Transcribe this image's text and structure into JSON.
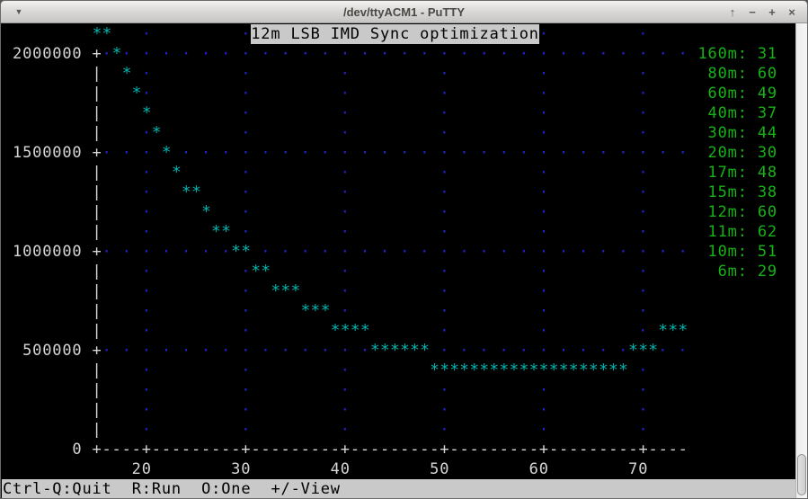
{
  "window": {
    "title": "/dev/ttyACM1 - PuTTY",
    "menu_icon": "▼",
    "buttons": [
      {
        "name": "shade-button",
        "glyph": "↑"
      },
      {
        "name": "minimize-button",
        "glyph": "−"
      },
      {
        "name": "maximize-button",
        "glyph": "+"
      },
      {
        "name": "close-button",
        "glyph": "×"
      }
    ]
  },
  "status_bar": {
    "text": "Ctrl-Q:Quit  R:Run  O:One  +/-View"
  },
  "colors": {
    "star": "#00b4ae",
    "dot": "#2222cc",
    "axis": "#d6d6d6",
    "legend": "#16b216",
    "title_bg": "#c9c9c9"
  },
  "chart_data": {
    "type": "scatter",
    "title": "12m LSB IMD Sync optimization",
    "marker": "*",
    "xlabel": "",
    "ylabel": "",
    "x_ticks": [
      20,
      30,
      40,
      50,
      60,
      70
    ],
    "y_ticks": [
      0,
      500000,
      1000000,
      1500000,
      2000000
    ],
    "x_range": [
      15,
      74
    ],
    "y_range": [
      0,
      2100000
    ],
    "grid": true,
    "legend_position": "right",
    "points": [
      [
        15,
        2100000
      ],
      [
        16,
        2100000
      ],
      [
        17,
        2000000
      ],
      [
        18,
        1900000
      ],
      [
        19,
        1800000
      ],
      [
        20,
        1700000
      ],
      [
        21,
        1600000
      ],
      [
        22,
        1500000
      ],
      [
        23,
        1400000
      ],
      [
        24,
        1300000
      ],
      [
        25,
        1300000
      ],
      [
        26,
        1200000
      ],
      [
        27,
        1100000
      ],
      [
        28,
        1100000
      ],
      [
        29,
        1000000
      ],
      [
        30,
        1000000
      ],
      [
        31,
        900000
      ],
      [
        32,
        900000
      ],
      [
        33,
        800000
      ],
      [
        34,
        800000
      ],
      [
        35,
        800000
      ],
      [
        36,
        700000
      ],
      [
        37,
        700000
      ],
      [
        38,
        700000
      ],
      [
        39,
        600000
      ],
      [
        40,
        600000
      ],
      [
        41,
        600000
      ],
      [
        42,
        600000
      ],
      [
        43,
        500000
      ],
      [
        44,
        500000
      ],
      [
        45,
        500000
      ],
      [
        46,
        500000
      ],
      [
        47,
        500000
      ],
      [
        48,
        500000
      ],
      [
        49,
        400000
      ],
      [
        50,
        400000
      ],
      [
        51,
        400000
      ],
      [
        52,
        400000
      ],
      [
        53,
        400000
      ],
      [
        54,
        400000
      ],
      [
        55,
        400000
      ],
      [
        56,
        400000
      ],
      [
        57,
        400000
      ],
      [
        58,
        400000
      ],
      [
        59,
        400000
      ],
      [
        60,
        400000
      ],
      [
        61,
        400000
      ],
      [
        62,
        400000
      ],
      [
        63,
        400000
      ],
      [
        64,
        400000
      ],
      [
        65,
        400000
      ],
      [
        66,
        400000
      ],
      [
        67,
        400000
      ],
      [
        68,
        400000
      ],
      [
        69,
        500000
      ],
      [
        70,
        500000
      ],
      [
        71,
        500000
      ],
      [
        72,
        600000
      ],
      [
        73,
        600000
      ],
      [
        74,
        600000
      ]
    ],
    "legend": [
      {
        "band": "160m",
        "value": 31
      },
      {
        "band": "80m",
        "value": 60
      },
      {
        "band": "60m",
        "value": 49
      },
      {
        "band": "40m",
        "value": 37
      },
      {
        "band": "30m",
        "value": 44
      },
      {
        "band": "20m",
        "value": 30
      },
      {
        "band": "17m",
        "value": 48
      },
      {
        "band": "15m",
        "value": 38
      },
      {
        "band": "12m",
        "value": 60
      },
      {
        "band": "11m",
        "value": 62
      },
      {
        "band": "10m",
        "value": 51
      },
      {
        "band": "6m",
        "value": 29
      }
    ]
  },
  "terminal": {
    "rows": [
      {
        "r": 0,
        "segs": [
          [
            9,
            "**",
            "s"
          ],
          [
            14,
            "·",
            "d"
          ],
          [
            24,
            "·",
            "d"
          ],
          [
            25,
            "12m LSB IMD Sync optimization",
            "t"
          ],
          [
            54,
            "·",
            "d"
          ],
          [
            64,
            "·",
            "d"
          ]
        ]
      },
      {
        "r": 1,
        "segs": [
          [
            1,
            "2000000",
            "a"
          ],
          [
            9,
            "+",
            "a"
          ],
          [
            10,
            "· · · · · · · · · · · · · · · · · · · · · · · · · · · · · ·",
            "d"
          ],
          [
            11,
            "*",
            "s"
          ],
          [
            70,
            "160m: 31",
            "g"
          ]
        ]
      },
      {
        "r": 2,
        "segs": [
          [
            9,
            "|",
            "a"
          ],
          [
            12,
            "*",
            "s"
          ],
          [
            14,
            "·         ·         ·         ·         ·         ·",
            "d"
          ],
          [
            70,
            " 80m: 60",
            "g"
          ]
        ]
      },
      {
        "r": 3,
        "segs": [
          [
            9,
            "|",
            "a"
          ],
          [
            13,
            "*",
            "s"
          ],
          [
            14,
            "·         ·         ·         ·         ·         ·",
            "d"
          ],
          [
            70,
            " 60m: 49",
            "g"
          ]
        ]
      },
      {
        "r": 4,
        "segs": [
          [
            9,
            "|",
            "a"
          ],
          [
            14,
            "*",
            "s"
          ],
          [
            24,
            "·         ·         ·         ·         ·",
            "d"
          ],
          [
            70,
            " 40m: 37",
            "g"
          ]
        ]
      },
      {
        "r": 5,
        "segs": [
          [
            9,
            "|",
            "a"
          ],
          [
            14,
            "·",
            "d"
          ],
          [
            15,
            "*",
            "s"
          ],
          [
            24,
            "·         ·         ·         ·         ·",
            "d"
          ],
          [
            70,
            " 30m: 44",
            "g"
          ]
        ]
      },
      {
        "r": 6,
        "segs": [
          [
            1,
            "1500000",
            "a"
          ],
          [
            9,
            "+",
            "a"
          ],
          [
            10,
            "· · ·",
            "d"
          ],
          [
            16,
            "*",
            "s"
          ],
          [
            18,
            "· · · · · · · · · · · · · · · · · · · · · · · · · ·",
            "d"
          ],
          [
            70,
            " 20m: 30",
            "g"
          ]
        ]
      },
      {
        "r": 7,
        "segs": [
          [
            9,
            "|",
            "a"
          ],
          [
            14,
            "·         ·         ·         ·         ·         ·",
            "d"
          ],
          [
            17,
            "*",
            "s"
          ],
          [
            70,
            " 17m: 48",
            "g"
          ]
        ]
      },
      {
        "r": 8,
        "segs": [
          [
            9,
            "|",
            "a"
          ],
          [
            14,
            "·         ·         ·         ·         ·         ·",
            "d"
          ],
          [
            18,
            "**",
            "s"
          ],
          [
            70,
            " 15m: 38",
            "g"
          ]
        ]
      },
      {
        "r": 9,
        "segs": [
          [
            9,
            "|",
            "a"
          ],
          [
            14,
            "·         ·         ·         ·         ·         ·",
            "d"
          ],
          [
            20,
            "*",
            "s"
          ],
          [
            70,
            " 12m: 60",
            "g"
          ]
        ]
      },
      {
        "r": 10,
        "segs": [
          [
            9,
            "|",
            "a"
          ],
          [
            14,
            "·         ·         ·         ·         ·         ·",
            "d"
          ],
          [
            21,
            "**",
            "s"
          ],
          [
            70,
            " 11m: 62",
            "g"
          ]
        ]
      },
      {
        "r": 11,
        "segs": [
          [
            1,
            "1000000",
            "a"
          ],
          [
            9,
            "+",
            "a"
          ],
          [
            10,
            "· · · · · · ·",
            "d"
          ],
          [
            23,
            "**",
            "s"
          ],
          [
            26,
            "· · · · · · · · · · · · · · · · · · · · · ·",
            "d"
          ],
          [
            70,
            " 10m: 51",
            "g"
          ]
        ]
      },
      {
        "r": 12,
        "segs": [
          [
            9,
            "|",
            "a"
          ],
          [
            14,
            "·         ·         ·         ·         ·         ·",
            "d"
          ],
          [
            25,
            "**",
            "s"
          ],
          [
            70,
            "  6m: 29",
            "g"
          ]
        ]
      },
      {
        "r": 13,
        "segs": [
          [
            9,
            "|",
            "a"
          ],
          [
            14,
            "·         ·         ·         ·         ·         ·",
            "d"
          ],
          [
            27,
            "***",
            "s"
          ]
        ]
      },
      {
        "r": 14,
        "segs": [
          [
            9,
            "|",
            "a"
          ],
          [
            14,
            "·         ·         ·         ·         ·         ·",
            "d"
          ],
          [
            30,
            "***",
            "s"
          ]
        ]
      },
      {
        "r": 15,
        "segs": [
          [
            9,
            "|",
            "a"
          ],
          [
            14,
            "·",
            "d"
          ],
          [
            24,
            "·",
            "d"
          ],
          [
            33,
            "****",
            "s"
          ],
          [
            44,
            "·         ·         ·",
            "d"
          ],
          [
            66,
            "***",
            "s"
          ]
        ]
      },
      {
        "r": 16,
        "segs": [
          [
            2,
            "500000",
            "a"
          ],
          [
            9,
            "+",
            "a"
          ],
          [
            10,
            "· · · · · · · · · · · · · ·",
            "d"
          ],
          [
            37,
            "******",
            "s"
          ],
          [
            44,
            "· · · · · · · · · ·",
            "d"
          ],
          [
            63,
            "***",
            "s"
          ],
          [
            66,
            "· ·",
            "d"
          ]
        ]
      },
      {
        "r": 17,
        "segs": [
          [
            9,
            "|",
            "a"
          ],
          [
            14,
            "·",
            "d"
          ],
          [
            24,
            "·",
            "d"
          ],
          [
            34,
            "·",
            "d"
          ],
          [
            43,
            "********************",
            "s"
          ],
          [
            64,
            "·",
            "d"
          ]
        ]
      },
      {
        "r": 18,
        "segs": [
          [
            9,
            "|",
            "a"
          ],
          [
            14,
            "·         ·         ·         ·         ·         ·",
            "d"
          ]
        ]
      },
      {
        "r": 19,
        "segs": [
          [
            9,
            "|",
            "a"
          ],
          [
            14,
            "·         ·         ·         ·         ·         ·",
            "d"
          ]
        ]
      },
      {
        "r": 20,
        "segs": [
          [
            9,
            "|",
            "a"
          ],
          [
            14,
            "·         ·         ·         ·         ·         ·",
            "d"
          ]
        ]
      },
      {
        "r": 21,
        "segs": [
          [
            7,
            "0",
            "a"
          ],
          [
            9,
            "+----+---------+---------+---------+---------+---------+----",
            "a"
          ]
        ]
      },
      {
        "r": 22,
        "segs": [
          [
            13,
            "20",
            "a"
          ],
          [
            23,
            "30",
            "a"
          ],
          [
            33,
            "40",
            "a"
          ],
          [
            43,
            "50",
            "a"
          ],
          [
            53,
            "60",
            "a"
          ],
          [
            63,
            "70",
            "a"
          ]
        ]
      }
    ]
  }
}
